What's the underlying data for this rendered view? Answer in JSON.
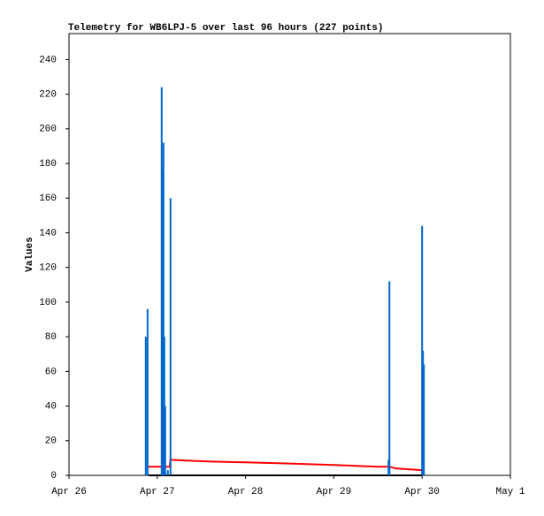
{
  "chart_data": {
    "type": "line",
    "title": "Telemetry for WB6LPJ-5 over last 96 hours (227 points)",
    "y_label": "Values",
    "xlim": [
      0,
      5
    ],
    "xticks": [
      {
        "value": 0,
        "label": "Apr 26"
      },
      {
        "value": 1,
        "label": "Apr 27"
      },
      {
        "value": 2,
        "label": "Apr 28"
      },
      {
        "value": 3,
        "label": "Apr 29"
      },
      {
        "value": 4,
        "label": "Apr 30"
      },
      {
        "value": 5,
        "label": "May 1"
      }
    ],
    "ylim": [
      0,
      255
    ],
    "yticks": [
      0,
      20,
      40,
      60,
      80,
      100,
      120,
      140,
      160,
      180,
      200,
      220,
      240
    ],
    "series": [
      {
        "color": "#000000",
        "style": "line",
        "x": [
          0.9,
          4.0
        ],
        "values": [
          0,
          0
        ]
      },
      {
        "color": "#ff0000",
        "style": "line",
        "x": [
          0.9,
          1.14,
          1.15,
          1.3,
          1.6,
          2.0,
          2.5,
          3.0,
          3.5,
          3.63,
          3.7,
          4.0
        ],
        "values": [
          5,
          5,
          9,
          8.6,
          8,
          7.5,
          6.8,
          6,
          5,
          5,
          4,
          3
        ]
      },
      {
        "color": "#0066cc",
        "style": "impulse",
        "x": [
          0.87,
          0.89,
          1.05,
          1.06,
          1.07,
          1.08,
          1.09,
          1.12,
          1.15,
          3.62,
          3.63,
          4.0,
          4.01,
          4.02
        ],
        "values": [
          80,
          96,
          224,
          176,
          192,
          80,
          40,
          3,
          160,
          9,
          112,
          144,
          72,
          64
        ]
      }
    ]
  }
}
